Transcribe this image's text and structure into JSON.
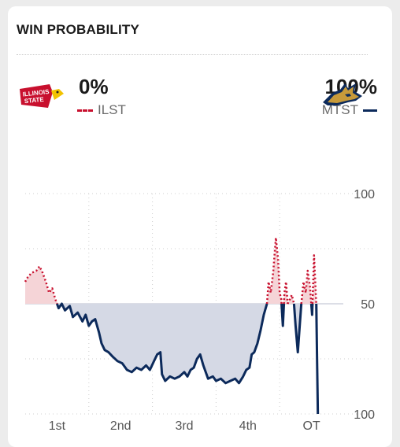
{
  "header": {
    "title": "WIN PROBABILITY"
  },
  "away": {
    "logo_name": "illinois-state-logo",
    "logo_text": "ILLINOIS STATE",
    "pct": "0%",
    "abbr": "ILST",
    "color": "#c8102e"
  },
  "home": {
    "logo_name": "montana-state-bobcat-logo",
    "pct": "100%",
    "abbr": "MTST",
    "color": "#0c2a5b"
  },
  "chart_data": {
    "type": "line",
    "y_tick_labels": [
      "100",
      "50",
      "100"
    ],
    "x_tick_labels": [
      "1st",
      "2nd",
      "3rd",
      "4th",
      "OT"
    ],
    "grid": true,
    "series": [
      {
        "name": "MTST",
        "note_hidden": false,
        "values": [
          [
            0,
            40
          ],
          [
            0.008,
            38
          ],
          [
            0.02,
            36
          ],
          [
            0.035,
            35
          ],
          [
            0.045,
            33
          ],
          [
            0.055,
            36
          ],
          [
            0.065,
            40
          ],
          [
            0.075,
            45
          ],
          [
            0.085,
            43
          ],
          [
            0.095,
            48
          ],
          [
            0.105,
            52
          ],
          [
            0.115,
            50
          ],
          [
            0.125,
            53
          ],
          [
            0.14,
            51
          ],
          [
            0.15,
            56
          ],
          [
            0.165,
            54
          ],
          [
            0.18,
            58
          ],
          [
            0.19,
            55
          ],
          [
            0.2,
            60
          ],
          [
            0.21,
            58
          ],
          [
            0.22,
            57
          ],
          [
            0.232,
            63
          ],
          [
            0.24,
            68
          ],
          [
            0.25,
            71
          ],
          [
            0.262,
            72
          ],
          [
            0.275,
            74
          ],
          [
            0.29,
            76
          ],
          [
            0.305,
            77
          ],
          [
            0.32,
            80
          ],
          [
            0.335,
            81
          ],
          [
            0.35,
            79
          ],
          [
            0.365,
            80
          ],
          [
            0.38,
            78
          ],
          [
            0.392,
            80
          ],
          [
            0.405,
            76
          ],
          [
            0.415,
            73
          ],
          [
            0.425,
            72
          ],
          [
            0.43,
            82
          ],
          [
            0.44,
            85
          ],
          [
            0.455,
            83
          ],
          [
            0.47,
            84
          ],
          [
            0.485,
            83
          ],
          [
            0.5,
            81
          ],
          [
            0.51,
            83
          ],
          [
            0.52,
            80
          ],
          [
            0.53,
            79
          ],
          [
            0.54,
            75
          ],
          [
            0.55,
            73
          ],
          [
            0.56,
            78
          ],
          [
            0.575,
            84
          ],
          [
            0.59,
            83
          ],
          [
            0.6,
            85
          ],
          [
            0.615,
            84
          ],
          [
            0.63,
            86
          ],
          [
            0.645,
            85
          ],
          [
            0.66,
            84
          ],
          [
            0.672,
            86
          ],
          [
            0.685,
            83
          ],
          [
            0.695,
            80
          ],
          [
            0.705,
            79
          ],
          [
            0.712,
            73
          ],
          [
            0.72,
            72
          ],
          [
            0.73,
            68
          ],
          [
            0.74,
            62
          ],
          [
            0.75,
            55
          ],
          [
            0.76,
            50
          ],
          [
            0.765,
            40
          ],
          [
            0.772,
            45
          ],
          [
            0.78,
            35
          ],
          [
            0.788,
            20
          ],
          [
            0.795,
            30
          ],
          [
            0.8,
            45
          ],
          [
            0.805,
            48
          ],
          [
            0.81,
            60
          ],
          [
            0.815,
            45
          ],
          [
            0.82,
            40
          ],
          [
            0.825,
            50
          ],
          [
            0.832,
            48
          ],
          [
            0.838,
            46
          ],
          [
            0.845,
            50
          ],
          [
            0.85,
            60
          ],
          [
            0.857,
            72
          ],
          [
            0.862,
            62
          ],
          [
            0.868,
            50
          ],
          [
            0.875,
            40
          ],
          [
            0.882,
            45
          ],
          [
            0.888,
            35
          ],
          [
            0.895,
            42
          ],
          [
            0.902,
            55
          ],
          [
            0.908,
            28
          ],
          [
            0.915,
            50
          ],
          [
            0.92,
            100
          ]
        ]
      }
    ],
    "quarter_breaks": [
      0.1,
      0.3,
      0.5,
      0.7,
      0.9
    ],
    "ylim": [
      0,
      100
    ]
  }
}
